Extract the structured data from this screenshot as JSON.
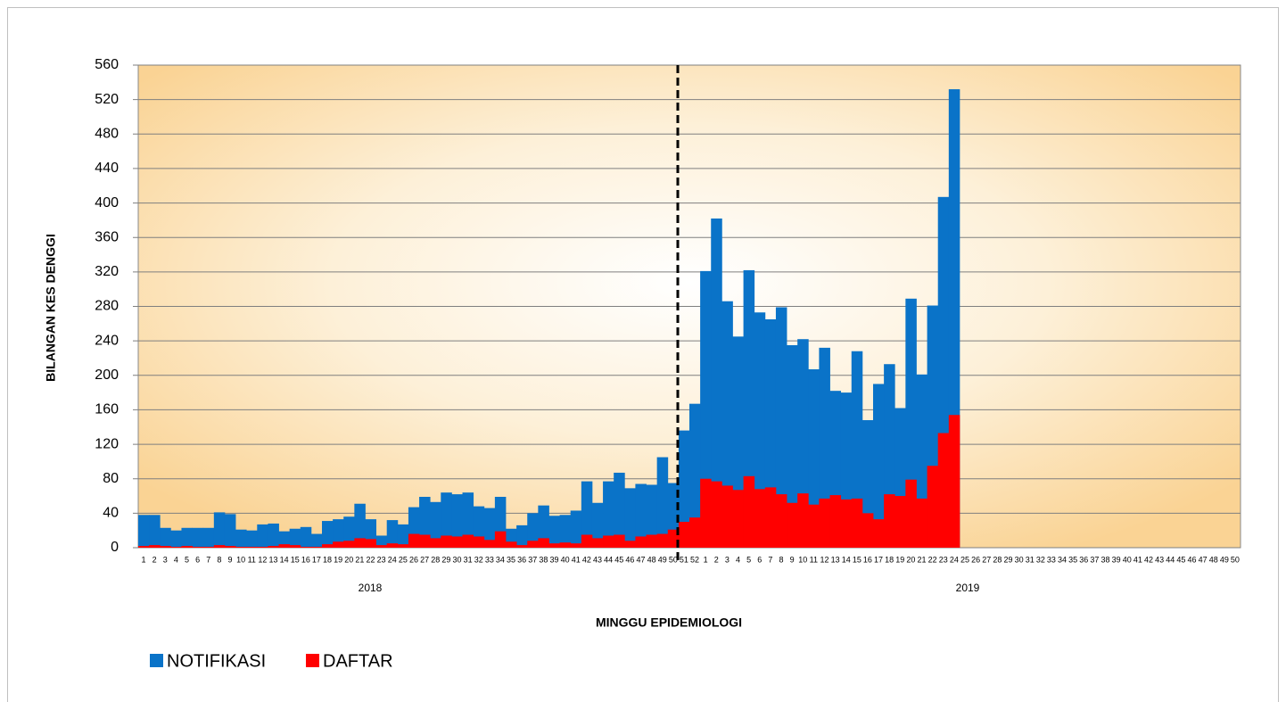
{
  "chart_data": {
    "type": "bar",
    "x_label": "MINGGU EPIDEMIOLOGI",
    "y_label": "BILANGAN KES DENGGI",
    "categories": [
      "1",
      "2",
      "3",
      "4",
      "5",
      "6",
      "7",
      "8",
      "9",
      "10",
      "11",
      "12",
      "13",
      "14",
      "15",
      "16",
      "17",
      "18",
      "19",
      "20",
      "21",
      "22",
      "23",
      "24",
      "25",
      "26",
      "27",
      "28",
      "29",
      "30",
      "31",
      "32",
      "33",
      "34",
      "35",
      "36",
      "37",
      "38",
      "39",
      "40",
      "41",
      "42",
      "43",
      "44",
      "45",
      "46",
      "47",
      "48",
      "49",
      "50",
      "51",
      "52",
      "1",
      "2",
      "3",
      "4",
      "5",
      "6",
      "7",
      "8",
      "9",
      "10",
      "11",
      "12",
      "13",
      "14",
      "15",
      "16",
      "17",
      "18",
      "19",
      "20",
      "21",
      "22",
      "23",
      "24",
      "25",
      "26",
      "27",
      "28",
      "29",
      "30",
      "31",
      "32",
      "33",
      "34",
      "35",
      "36",
      "37",
      "38",
      "39",
      "40",
      "41",
      "42",
      "43",
      "44",
      "45",
      "46",
      "47",
      "48",
      "49",
      "50"
    ],
    "x_groups": [
      "2018",
      "2019"
    ],
    "series": [
      {
        "name": "NOTIFIKASI",
        "color": "#0a73c8",
        "values": [
          38,
          38,
          23,
          20,
          23,
          23,
          23,
          41,
          39,
          21,
          20,
          27,
          28,
          19,
          22,
          24,
          16,
          31,
          33,
          36,
          51,
          33,
          14,
          32,
          27,
          47,
          59,
          53,
          64,
          62,
          64,
          48,
          46,
          59,
          22,
          26,
          40,
          49,
          37,
          38,
          43,
          77,
          52,
          77,
          87,
          69,
          74,
          73,
          105,
          75,
          136,
          167,
          321,
          382,
          286,
          245,
          322,
          273,
          265,
          279,
          235,
          242,
          207,
          232,
          182,
          180,
          228,
          148,
          190,
          213,
          162,
          289,
          201,
          281,
          407,
          532,
          null,
          null,
          null,
          null,
          null,
          null,
          null,
          null,
          null,
          null,
          null,
          null,
          null,
          null,
          null,
          null,
          null,
          null,
          null,
          null,
          null,
          null,
          null,
          null,
          null,
          null
        ]
      },
      {
        "name": "DAFTAR",
        "color": "#ff0000",
        "values": [
          2,
          3,
          2,
          1,
          2,
          1,
          1,
          3,
          2,
          1,
          1,
          1,
          2,
          4,
          3,
          1,
          1,
          4,
          7,
          8,
          11,
          10,
          3,
          5,
          4,
          16,
          15,
          11,
          14,
          13,
          15,
          13,
          9,
          19,
          7,
          3,
          8,
          11,
          5,
          6,
          5,
          15,
          11,
          14,
          15,
          8,
          13,
          15,
          16,
          21,
          30,
          35,
          80,
          77,
          72,
          67,
          83,
          68,
          70,
          62,
          52,
          63,
          50,
          57,
          61,
          56,
          57,
          40,
          33,
          62,
          60,
          79,
          57,
          95,
          133,
          154,
          null,
          null,
          null,
          null,
          null,
          null,
          null,
          null,
          null,
          null,
          null,
          null,
          null,
          null,
          null,
          null,
          null,
          null,
          null,
          null,
          null,
          null,
          null,
          null,
          null,
          null
        ]
      }
    ],
    "ylim": [
      0,
      560
    ],
    "yticks": [
      0,
      40,
      80,
      120,
      160,
      200,
      240,
      280,
      320,
      360,
      400,
      440,
      480,
      520,
      560
    ],
    "grid": true,
    "legend": "bottom-left"
  }
}
